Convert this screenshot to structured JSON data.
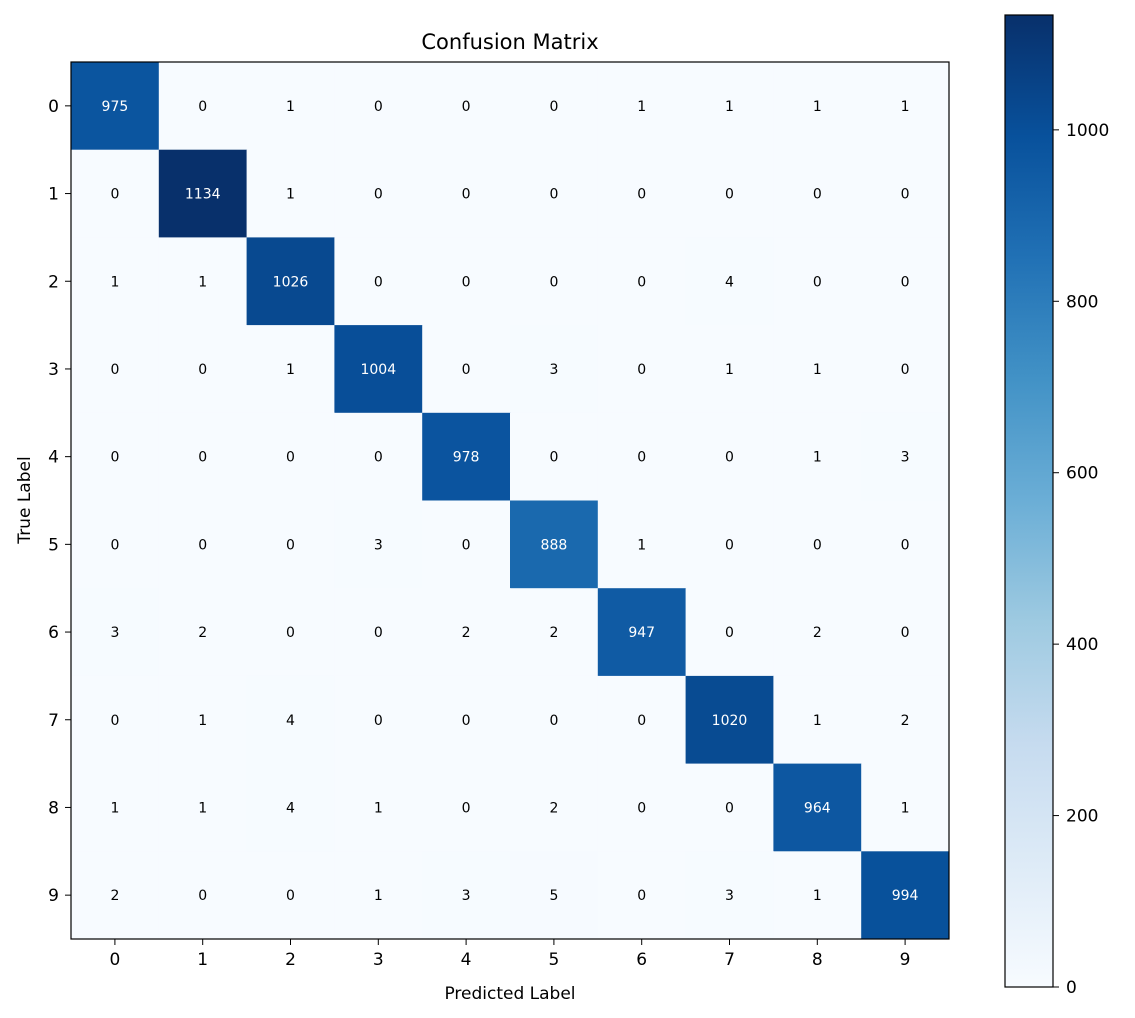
{
  "chart_data": {
    "type": "heatmap",
    "title": "Confusion Matrix",
    "xlabel": "Predicted Label",
    "ylabel": "True Label",
    "x_categories": [
      "0",
      "1",
      "2",
      "3",
      "4",
      "5",
      "6",
      "7",
      "8",
      "9"
    ],
    "y_categories": [
      "0",
      "1",
      "2",
      "3",
      "4",
      "5",
      "6",
      "7",
      "8",
      "9"
    ],
    "values": [
      [
        975,
        0,
        1,
        0,
        0,
        0,
        1,
        1,
        1,
        1
      ],
      [
        0,
        1134,
        1,
        0,
        0,
        0,
        0,
        0,
        0,
        0
      ],
      [
        1,
        1,
        1026,
        0,
        0,
        0,
        0,
        4,
        0,
        0
      ],
      [
        0,
        0,
        1,
        1004,
        0,
        3,
        0,
        1,
        1,
        0
      ],
      [
        0,
        0,
        0,
        0,
        978,
        0,
        0,
        0,
        1,
        3
      ],
      [
        0,
        0,
        0,
        3,
        0,
        888,
        1,
        0,
        0,
        0
      ],
      [
        3,
        2,
        0,
        0,
        2,
        2,
        947,
        0,
        2,
        0
      ],
      [
        0,
        1,
        4,
        0,
        0,
        0,
        0,
        1020,
        1,
        2
      ],
      [
        1,
        1,
        4,
        1,
        0,
        2,
        0,
        0,
        964,
        1
      ],
      [
        2,
        0,
        0,
        1,
        3,
        5,
        0,
        3,
        1,
        994
      ]
    ],
    "colormap": "Blues",
    "colormap_stops": [
      "#f7fbff",
      "#deebf7",
      "#c6dbef",
      "#9ecae1",
      "#6baed6",
      "#4292c6",
      "#2171b5",
      "#08519c",
      "#08306b"
    ],
    "colorbar": {
      "range": [
        0,
        1134
      ],
      "ticks": [
        0,
        200,
        400,
        600,
        800,
        1000
      ],
      "tick_labels": [
        "0",
        "200",
        "400",
        "600",
        "800",
        "1000"
      ]
    },
    "grid": false
  }
}
